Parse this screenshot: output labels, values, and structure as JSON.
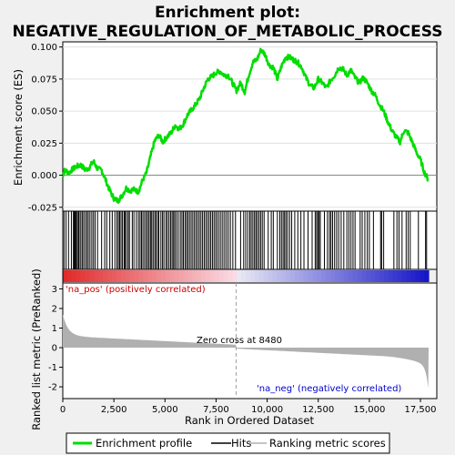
{
  "title_line1": "Enrichment plot:",
  "title_line2": "NEGATIVE_REGULATION_OF_METABOLIC_PROCESS",
  "chart_data": {
    "type": "line",
    "x_label": "Rank in Ordered Dataset",
    "y_label_top": "Enrichment score (ES)",
    "y_label_bottom": "Ranked list metric (PreRanked)",
    "x_ticks": [
      "0",
      "2,500",
      "5,000",
      "7,500",
      "10,000",
      "12,500",
      "15,000",
      "17,500"
    ],
    "x_tick_values": [
      0,
      2500,
      5000,
      7500,
      10000,
      12500,
      15000,
      17500
    ],
    "x_range": [
      0,
      18300
    ],
    "es_y_ticks": [
      "0.100",
      "0.075",
      "0.050",
      "0.025",
      "0.000",
      "-0.025"
    ],
    "es_y_tick_values": [
      0.1,
      0.075,
      0.05,
      0.025,
      0.0,
      -0.025
    ],
    "es_y_range": [
      -0.028,
      0.104
    ],
    "metric_y_ticks": [
      "3",
      "2",
      "1",
      "0",
      "-1",
      "-2"
    ],
    "metric_y_tick_values": [
      3,
      2,
      1,
      0,
      -1,
      -2
    ],
    "metric_y_range": [
      -2.6,
      3.3
    ],
    "zero_cross_label": "Zero cross at 8480",
    "zero_cross": 8480,
    "pos_label": "'na_pos' (positively correlated)",
    "neg_label": "'na_neg' (negatively correlated)",
    "n_genes": 17900,
    "enrichment_profile": [
      [
        0,
        0.0
      ],
      [
        100,
        0.004
      ],
      [
        300,
        0.002
      ],
      [
        500,
        0.005
      ],
      [
        700,
        0.007
      ],
      [
        900,
        0.008
      ],
      [
        1100,
        0.004
      ],
      [
        1300,
        0.006
      ],
      [
        1500,
        0.011
      ],
      [
        1700,
        0.005
      ],
      [
        1900,
        0.004
      ],
      [
        2100,
        -0.004
      ],
      [
        2300,
        -0.012
      ],
      [
        2500,
        -0.018
      ],
      [
        2700,
        -0.02
      ],
      [
        2900,
        -0.016
      ],
      [
        3100,
        -0.01
      ],
      [
        3300,
        -0.012
      ],
      [
        3500,
        -0.011
      ],
      [
        3700,
        -0.013
      ],
      [
        3900,
        -0.004
      ],
      [
        4100,
        0.002
      ],
      [
        4300,
        0.015
      ],
      [
        4500,
        0.027
      ],
      [
        4700,
        0.031
      ],
      [
        4900,
        0.026
      ],
      [
        5100,
        0.03
      ],
      [
        5300,
        0.033
      ],
      [
        5500,
        0.039
      ],
      [
        5700,
        0.036
      ],
      [
        5900,
        0.04
      ],
      [
        6100,
        0.047
      ],
      [
        6300,
        0.051
      ],
      [
        6500,
        0.055
      ],
      [
        6700,
        0.06
      ],
      [
        6900,
        0.068
      ],
      [
        7100,
        0.075
      ],
      [
        7300,
        0.077
      ],
      [
        7500,
        0.08
      ],
      [
        7700,
        0.081
      ],
      [
        7900,
        0.078
      ],
      [
        8100,
        0.078
      ],
      [
        8300,
        0.072
      ],
      [
        8500,
        0.066
      ],
      [
        8700,
        0.072
      ],
      [
        8900,
        0.065
      ],
      [
        9100,
        0.078
      ],
      [
        9300,
        0.088
      ],
      [
        9500,
        0.09
      ],
      [
        9700,
        0.098
      ],
      [
        9900,
        0.094
      ],
      [
        10100,
        0.086
      ],
      [
        10300,
        0.084
      ],
      [
        10500,
        0.075
      ],
      [
        10700,
        0.085
      ],
      [
        10900,
        0.092
      ],
      [
        11100,
        0.092
      ],
      [
        11300,
        0.09
      ],
      [
        11500,
        0.088
      ],
      [
        11700,
        0.084
      ],
      [
        11900,
        0.076
      ],
      [
        12100,
        0.07
      ],
      [
        12300,
        0.068
      ],
      [
        12500,
        0.075
      ],
      [
        12700,
        0.072
      ],
      [
        12900,
        0.068
      ],
      [
        13100,
        0.074
      ],
      [
        13300,
        0.078
      ],
      [
        13500,
        0.084
      ],
      [
        13700,
        0.083
      ],
      [
        13900,
        0.078
      ],
      [
        14100,
        0.082
      ],
      [
        14300,
        0.076
      ],
      [
        14500,
        0.072
      ],
      [
        14700,
        0.076
      ],
      [
        14900,
        0.072
      ],
      [
        15100,
        0.066
      ],
      [
        15300,
        0.062
      ],
      [
        15500,
        0.055
      ],
      [
        15700,
        0.05
      ],
      [
        15900,
        0.042
      ],
      [
        16100,
        0.035
      ],
      [
        16300,
        0.03
      ],
      [
        16500,
        0.026
      ],
      [
        16700,
        0.035
      ],
      [
        16900,
        0.033
      ],
      [
        17100,
        0.026
      ],
      [
        17300,
        0.018
      ],
      [
        17500,
        0.012
      ],
      [
        17700,
        0.002
      ],
      [
        17900,
        -0.004
      ]
    ],
    "hit_ranks": [
      60,
      160,
      280,
      420,
      520,
      560,
      600,
      640,
      700,
      760,
      800,
      880,
      950,
      1020,
      1100,
      1180,
      1250,
      1330,
      1420,
      1500,
      1580,
      1700,
      1900,
      2050,
      2150,
      2300,
      2420,
      2550,
      2650,
      2720,
      2780,
      2850,
      2920,
      3000,
      3050,
      3120,
      3200,
      3260,
      3400,
      3480,
      3600,
      3700,
      3780,
      3850,
      3920,
      4000,
      4080,
      4150,
      4220,
      4290,
      4350,
      4420,
      4500,
      4560,
      4640,
      4700,
      4800,
      4880,
      4950,
      5050,
      5120,
      5200,
      5280,
      5350,
      5420,
      5480,
      5560,
      5650,
      5750,
      5830,
      5900,
      5980,
      6050,
      6120,
      6200,
      6280,
      6360,
      6440,
      6520,
      6600,
      6680,
      6760,
      6840,
      6920,
      7000,
      7080,
      7160,
      7240,
      7320,
      7400,
      7480,
      7560,
      7650,
      7740,
      7830,
      7920,
      8010,
      8100,
      8200,
      8320,
      8450,
      8700,
      8850,
      8950,
      9050,
      9150,
      9220,
      9300,
      9380,
      9450,
      9520,
      9600,
      9680,
      9760,
      9850,
      10050,
      10200,
      10300,
      10500,
      10620,
      10700,
      10780,
      10850,
      10920,
      11000,
      11100,
      11200,
      11350,
      11500,
      11650,
      11800,
      12000,
      12200,
      12350,
      12420,
      12480,
      12540,
      12600,
      12800,
      12950,
      13050,
      13120,
      13200,
      13300,
      13400,
      13500,
      13620,
      13750,
      13900,
      14000,
      14100,
      14200,
      14300,
      14550,
      14650,
      14780,
      14900,
      15000,
      15200,
      15550,
      15600,
      15700,
      16200,
      16350,
      16450,
      16600,
      16800,
      16900,
      17000,
      17400,
      17750,
      17800
    ]
  },
  "legend": {
    "items": [
      {
        "label": "Enrichment profile",
        "color": "#00dd00"
      },
      {
        "label": "Hits",
        "color": "#000000"
      },
      {
        "label": "Ranking metric scores",
        "color": "#b0b0b0"
      }
    ]
  },
  "colors": {
    "profile": "#00dd00",
    "metric_fill": "#b0b0b0",
    "pos_text": "#cc0000",
    "neg_text": "#0000cc",
    "zero_line": "#a0a0a0"
  }
}
